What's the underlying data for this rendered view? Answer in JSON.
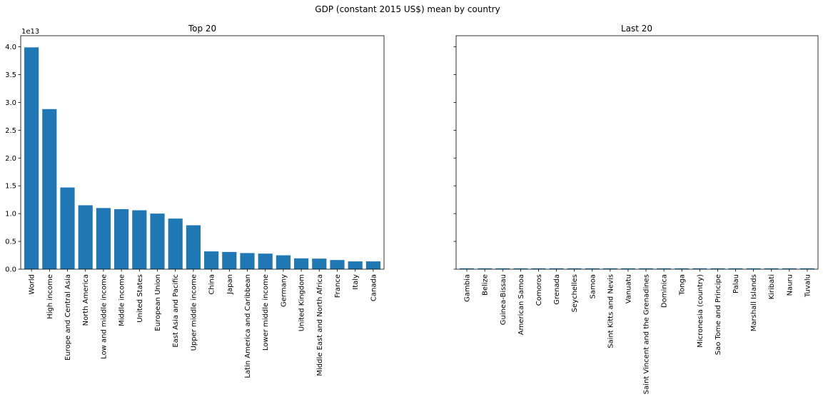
{
  "figure": {
    "suptitle": "GDP (constant 2015 US$) mean by country",
    "bar_color": "#1f77b4",
    "background": "#ffffff"
  },
  "chart_data": [
    {
      "type": "bar",
      "title": "Top 20",
      "xlabel": "",
      "ylabel": "",
      "y_offset_label": "1e13",
      "ylim": [
        0,
        42000000000000.0
      ],
      "yticks": [
        0,
        5000000000000.0,
        10000000000000.0,
        15000000000000.0,
        20000000000000.0,
        25000000000000.0,
        30000000000000.0,
        35000000000000.0,
        40000000000000.0
      ],
      "ytick_labels": [
        "0.0",
        "0.5",
        "1.0",
        "1.5",
        "2.0",
        "2.5",
        "3.0",
        "3.5",
        "4.0"
      ],
      "grid": false,
      "categories": [
        "World",
        "High income",
        "Europe and Central Asia",
        "North America",
        "Low and middle income",
        "Middle income",
        "United States",
        "European Union",
        "East Asia and Pacific",
        "Upper middle income",
        "China",
        "Japan",
        "Latin America and Caribbean",
        "Lower middle income",
        "Germany",
        "United Kingdom",
        "Middle East and North Africa",
        "France",
        "Italy",
        "Canada"
      ],
      "values": [
        39900000000000.0,
        28800000000000.0,
        14700000000000.0,
        11500000000000.0,
        11000000000000.0,
        10800000000000.0,
        10600000000000.0,
        10000000000000.0,
        9100000000000.0,
        7900000000000.0,
        3200000000000.0,
        3100000000000.0,
        2900000000000.0,
        2800000000000.0,
        2500000000000.0,
        1950000000000.0,
        1900000000000.0,
        1650000000000.0,
        1400000000000.0,
        1400000000000.0
      ]
    },
    {
      "type": "bar",
      "title": "Last 20",
      "xlabel": "",
      "ylabel": "",
      "ylim": [
        0,
        42000000000000.0
      ],
      "shared_y": true,
      "grid": false,
      "categories": [
        "Gambia",
        "Belize",
        "Guinea-Bissau",
        "American Samoa",
        "Comoros",
        "Grenada",
        "Seychelles",
        "Samoa",
        "Saint Kitts and Nevis",
        "Vanuatu",
        "Saint Vincent and the Grenadines",
        "Dominica",
        "Tonga",
        "Micronesia (country)",
        "Sao Tome and Principe",
        "Palau",
        "Marshall Islands",
        "Kiribati",
        "Nauru",
        "Tuvalu"
      ],
      "values": [
        1300000000.0,
        1600000000.0,
        1200000000.0,
        640000000.0,
        1000000000.0,
        1000000000.0,
        1300000000.0,
        800000000.0,
        850000000.0,
        820000000.0,
        770000000.0,
        530000000.0,
        440000000.0,
        390000000.0,
        340000000.0,
        270000000.0,
        210000000.0,
        170000000.0,
        110000000.0,
        40000000.0
      ]
    }
  ]
}
